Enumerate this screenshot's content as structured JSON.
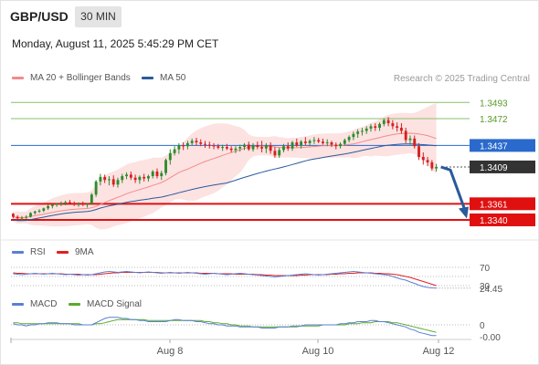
{
  "header": {
    "symbol": "GBP/USD",
    "timeframe": "30 MIN",
    "datetime": "Monday, August 11, 2025 5:45:29 PM CET"
  },
  "legend": {
    "ma20": "MA 20 + Bollinger Bands",
    "ma50": "MA 50",
    "credit": "Research © 2025 Trading Central",
    "rsi": "RSI",
    "rsi_ma": "9MA",
    "macd": "MACD",
    "macd_signal": "MACD Signal"
  },
  "colors": {
    "up_candle": "#2e8b2e",
    "down_candle": "#d42020",
    "ma20": "#f28b8b",
    "ma50": "#2a5a9a",
    "bollinger_fill": "#fde2e2",
    "resistance_green": "#8ac26a",
    "resistance_label": "#5a9a2a",
    "pivot_blue": "#2a6acc",
    "support_red": "#e01010",
    "last_price_bg": "#333333",
    "arrow": "#2a5a9a",
    "rsi_line": "#5a7fd6",
    "rsi_ma_line": "#e02020",
    "macd_line": "#5a7fd6",
    "macd_signal_line": "#5aaa2a"
  },
  "levels": [
    {
      "name": "resistance-2",
      "value": 1.3493,
      "label": "1.3493",
      "kind": "resistance"
    },
    {
      "name": "resistance-1",
      "value": 1.3472,
      "label": "1.3472",
      "kind": "resistance"
    },
    {
      "name": "pivot",
      "value": 1.3437,
      "label": "1.3437",
      "kind": "pivot"
    },
    {
      "name": "last-price",
      "value": 1.3409,
      "label": "1.3409",
      "kind": "last"
    },
    {
      "name": "support-1",
      "value": 1.3361,
      "label": "1.3361",
      "kind": "support"
    },
    {
      "name": "support-2",
      "value": 1.334,
      "label": "1.3340",
      "kind": "support"
    }
  ],
  "rsi_panel": {
    "ob_label": "70",
    "os_label": "30",
    "value_label": "24.45"
  },
  "macd_panel": {
    "zero_label": "0",
    "value_label": "-0.00"
  },
  "x_axis": {
    "ticks": [
      "Aug 8",
      "Aug 10",
      "Aug 12"
    ]
  },
  "chart_data": {
    "type": "candlestick",
    "price_range": [
      1.3315,
      1.351
    ],
    "candles": [
      [
        1.3348,
        1.3349,
        1.3342,
        1.3344
      ],
      [
        1.3344,
        1.3346,
        1.334,
        1.3342
      ],
      [
        1.3342,
        1.3345,
        1.3339,
        1.3343
      ],
      [
        1.3343,
        1.3346,
        1.3341,
        1.3344
      ],
      [
        1.3344,
        1.335,
        1.3343,
        1.3349
      ],
      [
        1.3349,
        1.3352,
        1.3347,
        1.3351
      ],
      [
        1.3351,
        1.3354,
        1.3349,
        1.3352
      ],
      [
        1.3352,
        1.3356,
        1.335,
        1.3355
      ],
      [
        1.3355,
        1.336,
        1.3353,
        1.3358
      ],
      [
        1.3358,
        1.3361,
        1.3355,
        1.336
      ],
      [
        1.336,
        1.3362,
        1.3357,
        1.3361
      ],
      [
        1.3361,
        1.3364,
        1.3358,
        1.3362
      ],
      [
        1.3362,
        1.3365,
        1.3359,
        1.3363
      ],
      [
        1.3363,
        1.3366,
        1.336,
        1.3362
      ],
      [
        1.3362,
        1.3364,
        1.3358,
        1.336
      ],
      [
        1.336,
        1.3363,
        1.3357,
        1.3361
      ],
      [
        1.3361,
        1.3364,
        1.3358,
        1.336
      ],
      [
        1.336,
        1.3362,
        1.3356,
        1.3361
      ],
      [
        1.3361,
        1.3375,
        1.336,
        1.3373
      ],
      [
        1.3373,
        1.3392,
        1.337,
        1.339
      ],
      [
        1.339,
        1.34,
        1.3385,
        1.3396
      ],
      [
        1.3396,
        1.3399,
        1.3388,
        1.3392
      ],
      [
        1.3392,
        1.3397,
        1.3385,
        1.3393
      ],
      [
        1.3393,
        1.3398,
        1.3383,
        1.3386
      ],
      [
        1.3386,
        1.3395,
        1.3382,
        1.3392
      ],
      [
        1.3392,
        1.34,
        1.3388,
        1.3397
      ],
      [
        1.3397,
        1.3402,
        1.3393,
        1.3399
      ],
      [
        1.3399,
        1.3403,
        1.3392,
        1.3395
      ],
      [
        1.3395,
        1.3399,
        1.3388,
        1.3392
      ],
      [
        1.3392,
        1.3398,
        1.3387,
        1.3396
      ],
      [
        1.3396,
        1.34,
        1.339,
        1.3394
      ],
      [
        1.3394,
        1.3399,
        1.339,
        1.3397
      ],
      [
        1.3397,
        1.3405,
        1.3394,
        1.3403
      ],
      [
        1.3403,
        1.3407,
        1.3394,
        1.3397
      ],
      [
        1.3397,
        1.3404,
        1.3392,
        1.3401
      ],
      [
        1.3401,
        1.342,
        1.3398,
        1.3418
      ],
      [
        1.3418,
        1.3432,
        1.3412,
        1.3427
      ],
      [
        1.3427,
        1.3436,
        1.3424,
        1.3432
      ],
      [
        1.3432,
        1.344,
        1.3426,
        1.3437
      ],
      [
        1.3437,
        1.3441,
        1.3431,
        1.3436
      ],
      [
        1.3436,
        1.3443,
        1.3432,
        1.344
      ],
      [
        1.344,
        1.3446,
        1.3437,
        1.3443
      ],
      [
        1.3443,
        1.3447,
        1.3437,
        1.3441
      ],
      [
        1.3441,
        1.3445,
        1.3436,
        1.3439
      ],
      [
        1.3439,
        1.3443,
        1.3434,
        1.3438
      ],
      [
        1.3438,
        1.3442,
        1.3433,
        1.3437
      ],
      [
        1.3437,
        1.344,
        1.3432,
        1.3436
      ],
      [
        1.3436,
        1.3439,
        1.3432,
        1.3434
      ],
      [
        1.3434,
        1.3438,
        1.343,
        1.3435
      ],
      [
        1.3435,
        1.3439,
        1.3431,
        1.3433
      ],
      [
        1.3433,
        1.3436,
        1.3428,
        1.3431
      ],
      [
        1.3431,
        1.3436,
        1.3427,
        1.3433
      ],
      [
        1.3433,
        1.3438,
        1.3429,
        1.3435
      ],
      [
        1.3435,
        1.344,
        1.3431,
        1.3438
      ],
      [
        1.3438,
        1.3442,
        1.343,
        1.3432
      ],
      [
        1.3432,
        1.344,
        1.3429,
        1.3437
      ],
      [
        1.3437,
        1.3442,
        1.3432,
        1.3435
      ],
      [
        1.3435,
        1.3443,
        1.3428,
        1.3433
      ],
      [
        1.3433,
        1.344,
        1.3427,
        1.3437
      ],
      [
        1.3437,
        1.3441,
        1.3426,
        1.343
      ],
      [
        1.343,
        1.3435,
        1.3421,
        1.3424
      ],
      [
        1.3424,
        1.3434,
        1.3421,
        1.3431
      ],
      [
        1.3431,
        1.3439,
        1.3428,
        1.3436
      ],
      [
        1.3436,
        1.3441,
        1.343,
        1.3433
      ],
      [
        1.3433,
        1.3443,
        1.343,
        1.3441
      ],
      [
        1.3441,
        1.3446,
        1.3435,
        1.3437
      ],
      [
        1.3437,
        1.3444,
        1.3433,
        1.3442
      ],
      [
        1.3442,
        1.3448,
        1.3437,
        1.344
      ],
      [
        1.344,
        1.3445,
        1.3436,
        1.3443
      ],
      [
        1.3443,
        1.3448,
        1.3439,
        1.3444
      ],
      [
        1.3444,
        1.3447,
        1.344,
        1.3442
      ],
      [
        1.3442,
        1.3446,
        1.3438,
        1.344
      ],
      [
        1.344,
        1.3445,
        1.3436,
        1.3441
      ],
      [
        1.3441,
        1.3443,
        1.3435,
        1.3438
      ],
      [
        1.3438,
        1.3441,
        1.3432,
        1.3436
      ],
      [
        1.3436,
        1.3441,
        1.3433,
        1.3439
      ],
      [
        1.3439,
        1.3446,
        1.3437,
        1.3444
      ],
      [
        1.3444,
        1.345,
        1.3441,
        1.3448
      ],
      [
        1.3448,
        1.3455,
        1.3444,
        1.3452
      ],
      [
        1.3452,
        1.3458,
        1.3447,
        1.3455
      ],
      [
        1.3455,
        1.346,
        1.345,
        1.3456
      ],
      [
        1.3456,
        1.3462,
        1.3452,
        1.3459
      ],
      [
        1.3459,
        1.3465,
        1.3455,
        1.3462
      ],
      [
        1.3462,
        1.3466,
        1.3456,
        1.346
      ],
      [
        1.346,
        1.3467,
        1.3456,
        1.3465
      ],
      [
        1.3465,
        1.3472,
        1.3462,
        1.347
      ],
      [
        1.347,
        1.3474,
        1.3462,
        1.3466
      ],
      [
        1.3466,
        1.347,
        1.3458,
        1.3462
      ],
      [
        1.3462,
        1.3467,
        1.3455,
        1.346
      ],
      [
        1.346,
        1.3466,
        1.3452,
        1.3456
      ],
      [
        1.3456,
        1.346,
        1.344,
        1.3444
      ],
      [
        1.3444,
        1.345,
        1.3438,
        1.3446
      ],
      [
        1.3446,
        1.345,
        1.3433,
        1.3436
      ],
      [
        1.3436,
        1.344,
        1.3418,
        1.3422
      ],
      [
        1.3422,
        1.3428,
        1.3412,
        1.3418
      ],
      [
        1.3418,
        1.3422,
        1.341,
        1.3415
      ],
      [
        1.3415,
        1.3418,
        1.3404,
        1.3407
      ],
      [
        1.3407,
        1.3413,
        1.3403,
        1.3409
      ]
    ],
    "rsi_ylim": [
      20,
      80
    ],
    "rsi": [
      56,
      55,
      54,
      55,
      56,
      57,
      56,
      55,
      56,
      57,
      56,
      55,
      54,
      55,
      54,
      53,
      54,
      53,
      54,
      56,
      58,
      60,
      61,
      60,
      59,
      60,
      61,
      60,
      59,
      58,
      59,
      60,
      59,
      58,
      57,
      58,
      59,
      58,
      57,
      58,
      59,
      58,
      57,
      56,
      55,
      56,
      57,
      56,
      55,
      54,
      55,
      56,
      57,
      56,
      55,
      54,
      53,
      52,
      51,
      50,
      49,
      50,
      51,
      52,
      53,
      54,
      55,
      56,
      55,
      54,
      53,
      54,
      55,
      56,
      57,
      58,
      59,
      60,
      61,
      60,
      59,
      58,
      57,
      56,
      55,
      54,
      53,
      50,
      47,
      44,
      42,
      38,
      35,
      31,
      28,
      26,
      25,
      24.45
    ],
    "rsi_ma": [
      58,
      57,
      57,
      56,
      56,
      56,
      56,
      56,
      56,
      56,
      56,
      56,
      55,
      55,
      55,
      55,
      54,
      54,
      54,
      54,
      55,
      56,
      57,
      58,
      58,
      59,
      59,
      59,
      59,
      59,
      59,
      59,
      59,
      59,
      58,
      58,
      58,
      58,
      58,
      58,
      58,
      58,
      58,
      57,
      57,
      57,
      57,
      56,
      56,
      56,
      56,
      55,
      55,
      55,
      55,
      55,
      54,
      54,
      53,
      53,
      52,
      52,
      52,
      52,
      52,
      52,
      53,
      53,
      54,
      54,
      54,
      54,
      54,
      55,
      55,
      56,
      56,
      57,
      57,
      58,
      58,
      58,
      58,
      57,
      57,
      56,
      56,
      55,
      54,
      52,
      50,
      48,
      45,
      42,
      39,
      36,
      33,
      30
    ],
    "macd_ylim": [
      -0.0012,
      0.0012
    ],
    "macd": [
      0.0001,
      0.0,
      -0.0,
      -0.0001,
      -0.0,
      0.0,
      0.0001,
      0.0001,
      0.0002,
      0.0002,
      0.0002,
      0.0001,
      0.0001,
      0.0001,
      0.0,
      0.0,
      -0.0,
      -0.0,
      0.0,
      0.0002,
      0.0004,
      0.0006,
      0.0007,
      0.0007,
      0.0007,
      0.0006,
      0.0006,
      0.0005,
      0.0005,
      0.0004,
      0.0004,
      0.0003,
      0.0003,
      0.0003,
      0.0003,
      0.0003,
      0.0004,
      0.0005,
      0.0005,
      0.0004,
      0.0004,
      0.0004,
      0.0003,
      0.0003,
      0.0002,
      0.0001,
      0.0001,
      0.0,
      -0.0,
      -0.0001,
      -0.0001,
      -0.0001,
      -0.0002,
      -0.0002,
      -0.0002,
      -0.0002,
      -0.0002,
      -0.0003,
      -0.0003,
      -0.0003,
      -0.0003,
      -0.0002,
      -0.0002,
      -0.0002,
      -0.0001,
      -0.0001,
      -0.0001,
      -0.0,
      -0.0,
      -0.0,
      -0.0,
      -0.0,
      -0.0,
      -0.0,
      0.0,
      0.0001,
      0.0001,
      0.0002,
      0.0002,
      0.0003,
      0.0003,
      0.0003,
      0.0004,
      0.0004,
      0.0003,
      0.0003,
      0.0002,
      0.0001,
      0.0,
      -0.0001,
      -0.0002,
      -0.0004,
      -0.0005,
      -0.0007,
      -0.0008,
      -0.0009,
      -0.001,
      -0.001
    ],
    "macd_signal": [
      0.0002,
      0.0002,
      0.0001,
      0.0001,
      0.0001,
      0.0001,
      0.0001,
      0.0001,
      0.0001,
      0.0001,
      0.0001,
      0.0001,
      0.0001,
      0.0001,
      0.0001,
      0.0001,
      0.0,
      0.0,
      0.0,
      0.0001,
      0.0001,
      0.0002,
      0.0003,
      0.0004,
      0.0005,
      0.0005,
      0.0005,
      0.0005,
      0.0005,
      0.0005,
      0.0005,
      0.0004,
      0.0004,
      0.0004,
      0.0004,
      0.0004,
      0.0004,
      0.0004,
      0.0004,
      0.0004,
      0.0004,
      0.0004,
      0.0004,
      0.0004,
      0.0003,
      0.0003,
      0.0002,
      0.0002,
      0.0001,
      0.0001,
      0.0,
      0.0,
      -0.0001,
      -0.0001,
      -0.0001,
      -0.0002,
      -0.0002,
      -0.0002,
      -0.0002,
      -0.0002,
      -0.0002,
      -0.0002,
      -0.0002,
      -0.0002,
      -0.0002,
      -0.0002,
      -0.0001,
      -0.0001,
      -0.0001,
      -0.0001,
      -0.0001,
      -0.0,
      -0.0,
      -0.0,
      -0.0,
      0.0,
      0.0,
      0.0001,
      0.0001,
      0.0001,
      0.0002,
      0.0002,
      0.0002,
      0.0003,
      0.0003,
      0.0003,
      0.0003,
      0.0002,
      0.0002,
      0.0001,
      0.0,
      -0.0001,
      -0.0002,
      -0.0003,
      -0.0004,
      -0.0005,
      -0.0006,
      -0.0007
    ]
  }
}
